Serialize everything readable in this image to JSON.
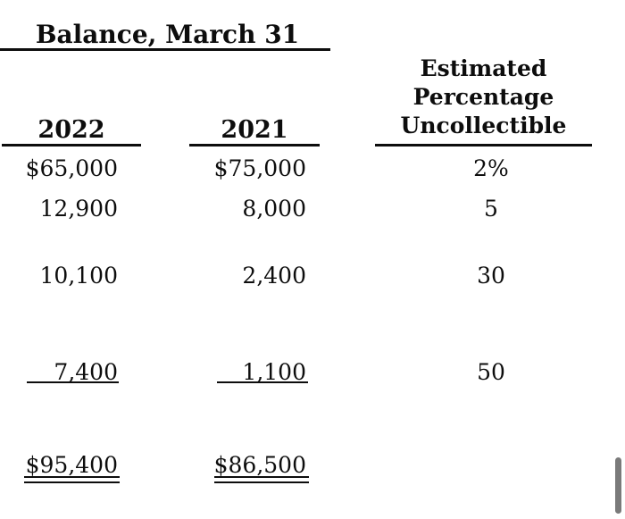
{
  "table": {
    "balance_group_title": "Balance, March 31",
    "columns": {
      "year_2022": "2022",
      "year_2021": "2021",
      "pct_header_line1": "Estimated",
      "pct_header_line2": "Percentage",
      "pct_header_line3": "Uncollectible"
    },
    "rows": [
      {
        "balance_2022": "$65,000",
        "balance_2021": "$75,000",
        "pct_uncollectible": "2%"
      },
      {
        "balance_2022": "12,900",
        "balance_2021": "8,000",
        "pct_uncollectible": "5"
      },
      {
        "balance_2022": "10,100",
        "balance_2021": "2,400",
        "pct_uncollectible": "30"
      },
      {
        "balance_2022": "7,400",
        "balance_2021": "1,100",
        "pct_uncollectible": "50"
      }
    ],
    "totals": {
      "balance_2022": "$95,400",
      "balance_2021": "$86,500"
    }
  },
  "colors": {
    "ink": "#0d0d0d",
    "background": "#ffffff",
    "scrollbar_thumb": "#7a7a7a"
  }
}
